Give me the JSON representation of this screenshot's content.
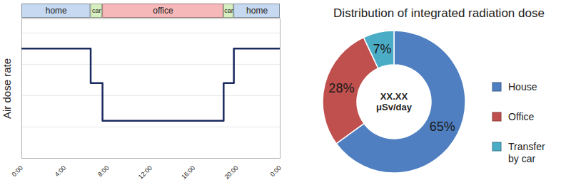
{
  "chart_data": [
    {
      "type": "line",
      "y_label": "Air dose rate",
      "x": [
        0,
        6.4,
        7.5,
        18.75,
        19.7,
        24
      ],
      "values": [
        3.5,
        2.4,
        1.2,
        2.4,
        3.5,
        3.5
      ],
      "color": "#1a2a5e",
      "line_style": "step",
      "xlim": [
        0,
        24
      ],
      "xticks": [
        {
          "value": 0,
          "label": "0:00"
        },
        {
          "value": 4,
          "label": "4:00"
        },
        {
          "value": 8,
          "label": "8:00"
        },
        {
          "value": 12,
          "label": "12:00"
        },
        {
          "value": 16,
          "label": "16:00"
        },
        {
          "value": 20,
          "label": "20:00"
        },
        {
          "value": 24,
          "label": "0:00"
        }
      ],
      "ylim": [
        0,
        4.45
      ],
      "yticks": [
        0,
        1,
        2,
        3,
        4
      ],
      "grid": true,
      "tick_labels": "x",
      "periods": [
        {
          "label": "home",
          "start": 0,
          "end": 6.4,
          "color": "#c6d9f1"
        },
        {
          "label": "car",
          "start": 6.4,
          "end": 7.5,
          "color": "#d7efc0"
        },
        {
          "label": "office",
          "start": 7.5,
          "end": 18.75,
          "color": "#f6b8b8"
        },
        {
          "label": "car",
          "start": 18.75,
          "end": 19.7,
          "color": "#d7efc0"
        },
        {
          "label": "home",
          "start": 19.7,
          "end": 24,
          "color": "#c6d9f1"
        }
      ]
    },
    {
      "type": "donut",
      "title": "Distribution of integrated radiation dose",
      "categories": [
        "House",
        "Office",
        "Transfer by car"
      ],
      "values": [
        65,
        28,
        7
      ],
      "value_labels": [
        "65%",
        "28%",
        "7%"
      ],
      "colors": [
        "#4f7fc0",
        "#c0504d",
        "#4bacc6"
      ],
      "data_labels": true,
      "legend": "right",
      "annotations": [
        "XX.XX",
        "μSv/day"
      ]
    }
  ]
}
